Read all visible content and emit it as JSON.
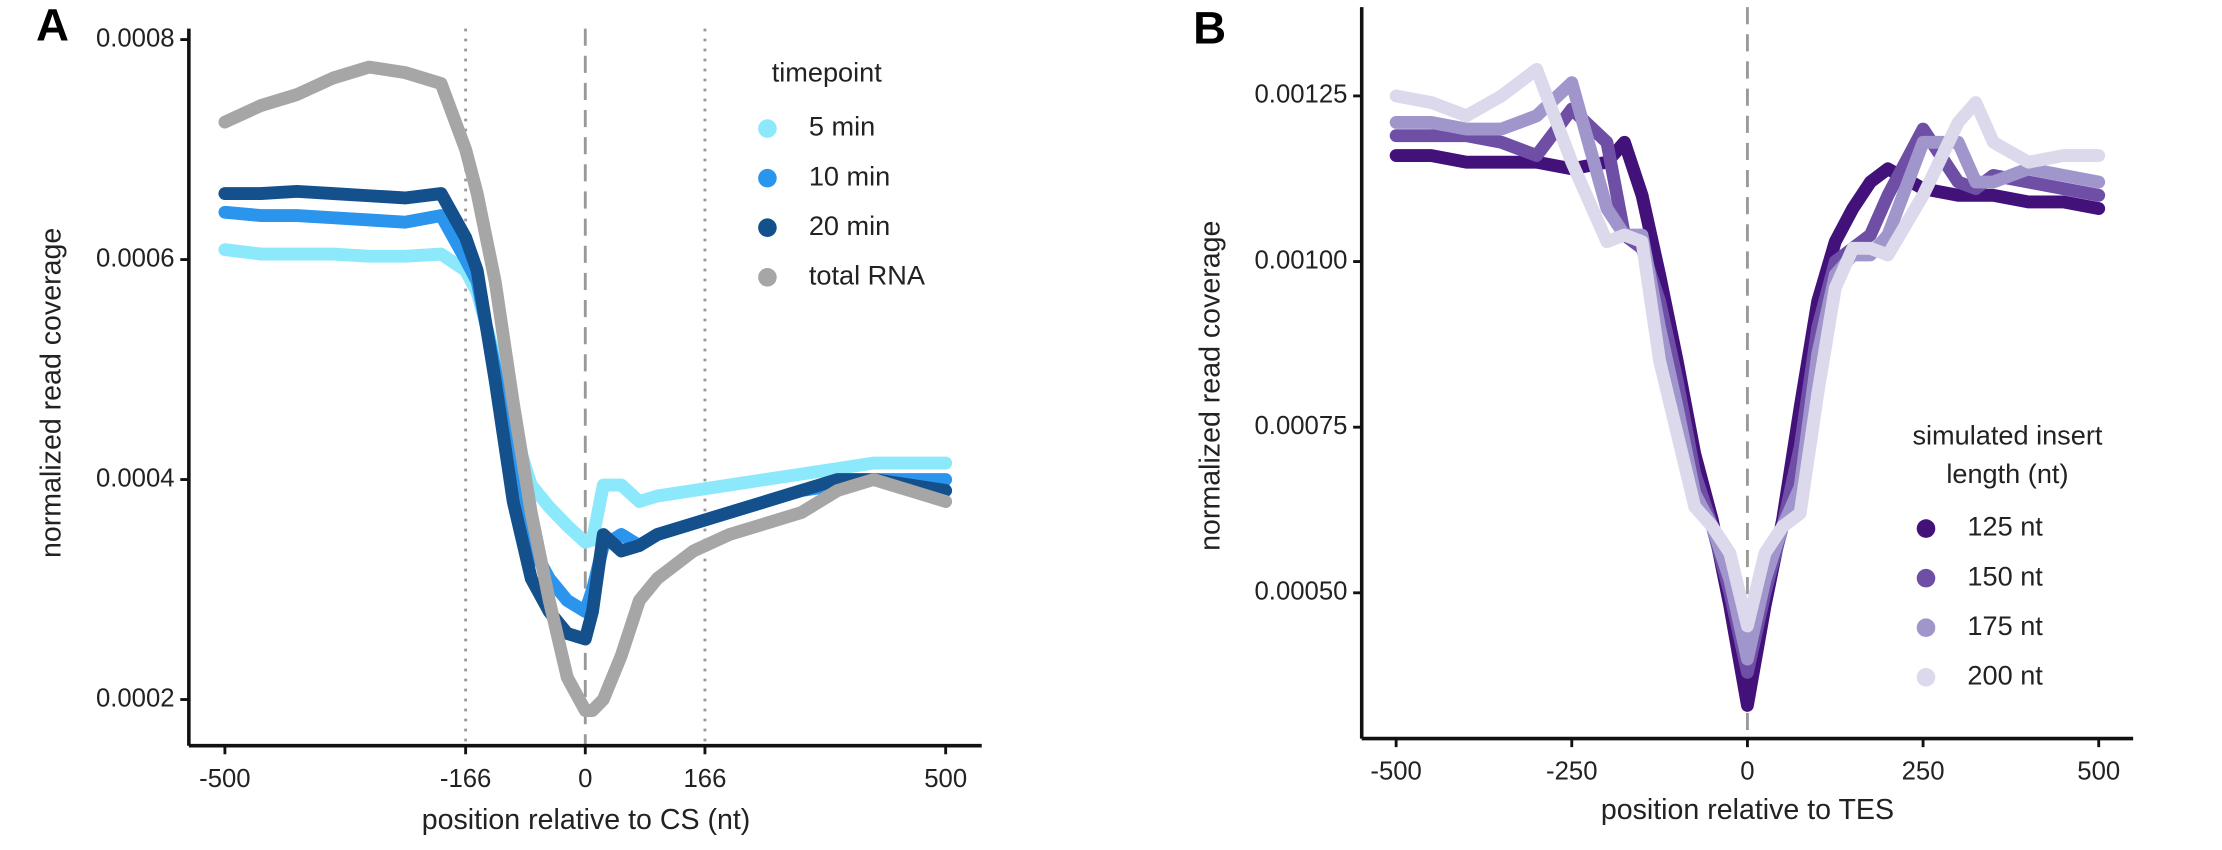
{
  "chart_data": [
    {
      "type": "line",
      "panel_label": "A",
      "xlabel": "position relative to CS (nt)",
      "ylabel": "normalized read coverage",
      "legend_title": [
        "timepoint"
      ],
      "xlim": [
        -550,
        550
      ],
      "ylim": [
        0.000158,
        0.00081
      ],
      "xticks": [
        -500,
        -166,
        0,
        166,
        500
      ],
      "yticks": [
        0.0002,
        0.0004,
        0.0006,
        0.0008
      ],
      "dotted_lines": [
        -166,
        166
      ],
      "dashed_lines": [
        0
      ],
      "x": [
        -500,
        -450,
        -400,
        -350,
        -300,
        -250,
        -200,
        -166,
        -150,
        -125,
        -100,
        -75,
        -50,
        -25,
        0,
        10,
        25,
        50,
        75,
        100,
        150,
        200,
        250,
        300,
        350,
        400,
        450,
        500
      ],
      "series": [
        {
          "name": "5 min",
          "color": "#8be9fb",
          "values": [
            0.000609,
            0.000605,
            0.000605,
            0.000605,
            0.000603,
            0.000603,
            0.000605,
            0.00059,
            0.00057,
            0.00051,
            0.000447,
            0.000395,
            0.000375,
            0.000358,
            0.000343,
            0.000345,
            0.000395,
            0.000395,
            0.00038,
            0.000385,
            0.00039,
            0.000395,
            0.0004,
            0.000405,
            0.00041,
            0.000415,
            0.000415,
            0.000415
          ]
        },
        {
          "name": "10 min",
          "color": "#2b95ee",
          "values": [
            0.000643,
            0.00064,
            0.00064,
            0.000638,
            0.000636,
            0.000634,
            0.00064,
            0.0006,
            0.00058,
            0.0005,
            0.00041,
            0.00034,
            0.00031,
            0.00029,
            0.00028,
            0.0003,
            0.00034,
            0.00035,
            0.00034,
            0.00035,
            0.00036,
            0.00037,
            0.00038,
            0.00039,
            0.000395,
            0.0004,
            0.0004,
            0.0004
          ]
        },
        {
          "name": "20 min",
          "color": "#13508c",
          "values": [
            0.00066,
            0.00066,
            0.000662,
            0.00066,
            0.000658,
            0.000656,
            0.00066,
            0.00062,
            0.00059,
            0.00049,
            0.00038,
            0.00031,
            0.00028,
            0.00026,
            0.000255,
            0.00028,
            0.00035,
            0.000335,
            0.00034,
            0.00035,
            0.00036,
            0.00037,
            0.00038,
            0.00039,
            0.0004,
            0.0004,
            0.000395,
            0.00039
          ]
        },
        {
          "name": "total RNA",
          "color": "#a6a6a6",
          "values": [
            0.000725,
            0.00074,
            0.00075,
            0.000765,
            0.000775,
            0.00077,
            0.00076,
            0.0007,
            0.00066,
            0.00058,
            0.00047,
            0.00037,
            0.00029,
            0.00022,
            0.00019,
            0.00019,
            0.0002,
            0.00024,
            0.00029,
            0.00031,
            0.000335,
            0.00035,
            0.00036,
            0.00037,
            0.00039,
            0.0004,
            0.00039,
            0.00038
          ]
        }
      ]
    },
    {
      "type": "line",
      "panel_label": "B",
      "xlabel": "position relative to TES",
      "ylabel": "normalized read coverage",
      "legend_title": [
        "simulated insert",
        "length (nt)"
      ],
      "xlim": [
        -549,
        549
      ],
      "ylim": [
        0.00028,
        0.001384
      ],
      "xticks": [
        -500,
        -250,
        0,
        250,
        500
      ],
      "yticks": [
        {
          "value": 0.0005,
          "label": "0.00050"
        },
        {
          "value": 0.00075,
          "label": "0.00075"
        },
        {
          "value": 0.001,
          "label": "0.00100"
        },
        {
          "value": 0.00125,
          "label": "0.00125"
        }
      ],
      "dotted_lines": [],
      "dashed_lines": [
        0
      ],
      "x": [
        -500,
        -450,
        -400,
        -350,
        -300,
        -250,
        -200,
        -175,
        -150,
        -125,
        -100,
        -75,
        -50,
        -25,
        0,
        25,
        50,
        75,
        100,
        125,
        150,
        175,
        200,
        250,
        300,
        325,
        350,
        400,
        450,
        500
      ],
      "series": [
        {
          "name": "125 nt",
          "color": "#42117a",
          "values": [
            0.00116,
            0.00116,
            0.00115,
            0.00115,
            0.00115,
            0.00114,
            0.00115,
            0.00118,
            0.0011,
            0.00098,
            0.00085,
            0.00071,
            0.00061,
            0.00048,
            0.00033,
            0.00048,
            0.00061,
            0.00078,
            0.00094,
            0.00103,
            0.00108,
            0.00112,
            0.00114,
            0.00111,
            0.0011,
            0.0011,
            0.0011,
            0.00109,
            0.00109,
            0.00108
          ]
        },
        {
          "name": "150 nt",
          "color": "#6e4fa5",
          "values": [
            0.00119,
            0.00119,
            0.00119,
            0.00118,
            0.00116,
            0.00123,
            0.00118,
            0.00104,
            0.00102,
            0.00094,
            0.00082,
            0.00068,
            0.0006,
            0.0005,
            0.00038,
            0.0005,
            0.0006,
            0.00072,
            0.0009,
            0.001,
            0.00102,
            0.00104,
            0.0011,
            0.0012,
            0.00112,
            0.00111,
            0.00113,
            0.00112,
            0.00111,
            0.0011
          ]
        },
        {
          "name": "175 nt",
          "color": "#a096cc",
          "values": [
            0.00121,
            0.00121,
            0.0012,
            0.0012,
            0.00122,
            0.00127,
            0.00108,
            0.00104,
            0.00104,
            0.0009,
            0.00078,
            0.00065,
            0.0006,
            0.00052,
            0.0004,
            0.00052,
            0.0006,
            0.00066,
            0.00086,
            0.00098,
            0.00101,
            0.00101,
            0.00104,
            0.00118,
            0.00118,
            0.00112,
            0.00112,
            0.00114,
            0.00113,
            0.00112
          ]
        },
        {
          "name": "200 nt",
          "color": "#dcd9ec",
          "values": [
            0.00125,
            0.00124,
            0.00122,
            0.00125,
            0.00129,
            0.00115,
            0.00103,
            0.00104,
            0.00103,
            0.00085,
            0.00074,
            0.00063,
            0.0006,
            0.00056,
            0.00045,
            0.00056,
            0.0006,
            0.00062,
            0.0008,
            0.00096,
            0.00102,
            0.00102,
            0.00101,
            0.0011,
            0.00121,
            0.00124,
            0.00118,
            0.00115,
            0.00116,
            0.00116
          ]
        }
      ]
    }
  ]
}
